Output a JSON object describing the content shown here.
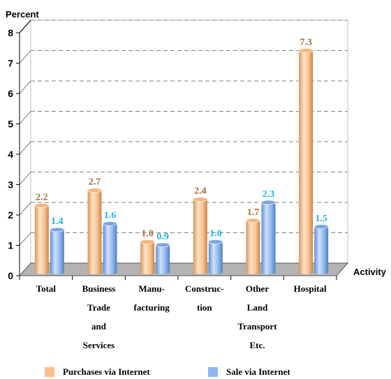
{
  "chart_data": {
    "type": "bar",
    "ylabel": "Percent",
    "xlabel": "Activity",
    "ylim": [
      0,
      8
    ],
    "yticks": [
      "0",
      "1",
      "2",
      "3",
      "4",
      "5",
      "6",
      "7",
      "8"
    ],
    "categories": [
      [
        "Total"
      ],
      [
        "Business",
        "Trade",
        "and",
        "Services"
      ],
      [
        "Manu-",
        "facturing"
      ],
      [
        "Construc-",
        "tion"
      ],
      [
        "Other",
        "Land",
        "Transport",
        "Etc."
      ],
      [
        "Hospital"
      ]
    ],
    "series": [
      {
        "name": "Purchases via Internet",
        "values": [
          2.2,
          2.7,
          1.0,
          2.4,
          1.7,
          7.3
        ],
        "labels": [
          "2.2",
          "2.7",
          "1.0",
          "2.4",
          "1.7",
          "7.3"
        ],
        "color": "#f9c08f",
        "label_color": "#a0703a"
      },
      {
        "name": "Sale via Internet",
        "values": [
          1.4,
          1.6,
          0.9,
          1.0,
          2.3,
          1.5
        ],
        "labels": [
          "1.4",
          "1.6",
          "0.9",
          "1.0",
          "2.3",
          "1.5"
        ],
        "color": "#8fb6ec",
        "label_color": "#19b8e8"
      }
    ],
    "grid": true,
    "legend_position": "bottom",
    "floor_color": "#b3b3b3"
  }
}
